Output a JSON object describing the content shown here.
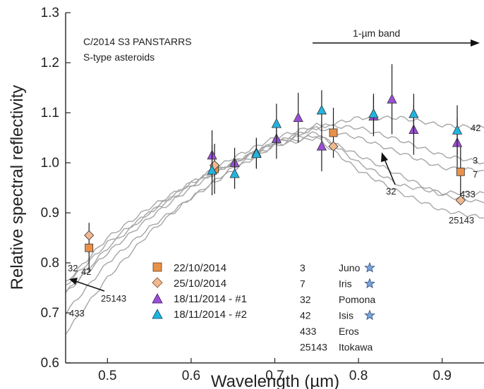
{
  "chart_data": {
    "type": "scatter",
    "xlabel": "Wavelength (µm)",
    "ylabel": "Relative spectral reflectivity",
    "xlim": [
      0.45,
      0.95
    ],
    "ylim": [
      0.6,
      1.3
    ],
    "x_ticks": [
      "0.5",
      "0.6",
      "0.7",
      "0.8",
      "0.9"
    ],
    "y_ticks": [
      "0.6",
      "0.7",
      "0.8",
      "0.9",
      "1.0",
      "1.1",
      "1.2",
      "1.3"
    ],
    "annotations": {
      "comet": "C/2014 S3 PANSTARRS",
      "asteroid_class": "S-type asteroids",
      "band": "1-µm band"
    },
    "series": [
      {
        "name": "22/10/2014",
        "marker": "square",
        "color": "#e8914a",
        "points": [
          {
            "x": 0.478,
            "y": 0.83,
            "err": 0.05
          },
          {
            "x": 0.628,
            "y": 0.988,
            "err": 0.05
          },
          {
            "x": 0.77,
            "y": 1.06,
            "err": 0.05
          },
          {
            "x": 0.922,
            "y": 0.982,
            "err": 0.05
          }
        ]
      },
      {
        "name": "25/10/2014",
        "marker": "diamond",
        "color": "#f2b98f",
        "points": [
          {
            "x": 0.478,
            "y": 0.855,
            "err": 0.0
          },
          {
            "x": 0.628,
            "y": 0.995,
            "err": 0.0
          },
          {
            "x": 0.77,
            "y": 1.033,
            "err": 0.0
          },
          {
            "x": 0.922,
            "y": 0.925,
            "err": 0.0
          }
        ]
      },
      {
        "name": "18/11/2014 - #1",
        "marker": "triangle",
        "color": "#9b4fd6",
        "points": [
          {
            "x": 0.625,
            "y": 1.015,
            "err": 0.05
          },
          {
            "x": 0.652,
            "y": 1.0,
            "err": 0.03
          },
          {
            "x": 0.678,
            "y": 1.02,
            "err": 0.03
          },
          {
            "x": 0.702,
            "y": 1.048,
            "err": 0.04
          },
          {
            "x": 0.728,
            "y": 1.09,
            "err": 0.05
          },
          {
            "x": 0.756,
            "y": 1.033,
            "err": 0.05
          },
          {
            "x": 0.818,
            "y": 1.093,
            "err": 0.04
          },
          {
            "x": 0.84,
            "y": 1.127,
            "err": 0.07
          },
          {
            "x": 0.866,
            "y": 1.066,
            "err": 0.05
          },
          {
            "x": 0.918,
            "y": 1.04,
            "err": 0.05
          }
        ]
      },
      {
        "name": "18/11/2014 - #2",
        "marker": "triangle",
        "color": "#20b4e0",
        "points": [
          {
            "x": 0.625,
            "y": 0.985,
            "err": 0.05
          },
          {
            "x": 0.652,
            "y": 0.978,
            "err": 0.03
          },
          {
            "x": 0.678,
            "y": 1.018,
            "err": 0.03
          },
          {
            "x": 0.702,
            "y": 1.078,
            "err": 0.04
          },
          {
            "x": 0.756,
            "y": 1.105,
            "err": 0.04
          },
          {
            "x": 0.818,
            "y": 1.098,
            "err": 0.04
          },
          {
            "x": 0.866,
            "y": 1.098,
            "err": 0.04
          },
          {
            "x": 0.918,
            "y": 1.065,
            "err": 0.05
          }
        ]
      }
    ],
    "reference_curves": [
      {
        "id": "3",
        "label": "3",
        "x": [
          0.45,
          0.5,
          0.55,
          0.6,
          0.65,
          0.7,
          0.75,
          0.8,
          0.85,
          0.9,
          0.95
        ],
        "y": [
          0.74,
          0.83,
          0.9,
          0.96,
          1.01,
          1.05,
          1.075,
          1.07,
          1.045,
          1.015,
          1.0
        ]
      },
      {
        "id": "7",
        "label": "7",
        "x": [
          0.45,
          0.5,
          0.55,
          0.6,
          0.65,
          0.7,
          0.75,
          0.8,
          0.85,
          0.9,
          0.95
        ],
        "y": [
          0.74,
          0.82,
          0.89,
          0.95,
          1.0,
          1.04,
          1.07,
          1.05,
          1.02,
          0.99,
          0.985
        ]
      },
      {
        "id": "32",
        "label": "32",
        "x": [
          0.45,
          0.5,
          0.55,
          0.6,
          0.65,
          0.7,
          0.75,
          0.8,
          0.85,
          0.9,
          0.95
        ],
        "y": [
          0.76,
          0.85,
          0.91,
          0.96,
          1.0,
          1.04,
          1.06,
          1.0,
          0.955,
          0.94,
          0.94
        ]
      },
      {
        "id": "42",
        "label": "42",
        "x": [
          0.45,
          0.5,
          0.55,
          0.6,
          0.65,
          0.7,
          0.75,
          0.8,
          0.85,
          0.9,
          0.95
        ],
        "y": [
          0.755,
          0.84,
          0.9,
          0.955,
          1.0,
          1.04,
          1.07,
          1.09,
          1.09,
          1.075,
          1.07
        ]
      },
      {
        "id": "433",
        "label": "433",
        "x": [
          0.45,
          0.5,
          0.55,
          0.6,
          0.65,
          0.7,
          0.75,
          0.8,
          0.85,
          0.9,
          0.95
        ],
        "y": [
          0.66,
          0.77,
          0.86,
          0.93,
          0.99,
          1.035,
          1.055,
          1.015,
          0.975,
          0.935,
          0.92
        ]
      },
      {
        "id": "25143",
        "label": "25143",
        "x": [
          0.45,
          0.5,
          0.55,
          0.6,
          0.65,
          0.7,
          0.75,
          0.8,
          0.85,
          0.9,
          0.95
        ],
        "y": [
          0.7,
          0.8,
          0.87,
          0.93,
          0.985,
          1.035,
          1.05,
          0.985,
          0.94,
          0.905,
          0.89
        ]
      }
    ],
    "curve_arrows": {
      "left": "25143",
      "right": "32"
    },
    "asteroids": [
      {
        "number": "3",
        "name": "Juno",
        "star": true
      },
      {
        "number": "7",
        "name": "Iris",
        "star": true
      },
      {
        "number": "32",
        "name": "Pomona",
        "star": false
      },
      {
        "number": "42",
        "name": "Isis",
        "star": true
      },
      {
        "number": "433",
        "name": "Eros",
        "star": false
      },
      {
        "number": "25143",
        "name": "Itokawa",
        "star": false
      }
    ],
    "colors": {
      "curve": "#a6a6a6",
      "axis": "#333333",
      "errorbar": "#1a1a1a",
      "star": "#7aa5d8"
    }
  }
}
